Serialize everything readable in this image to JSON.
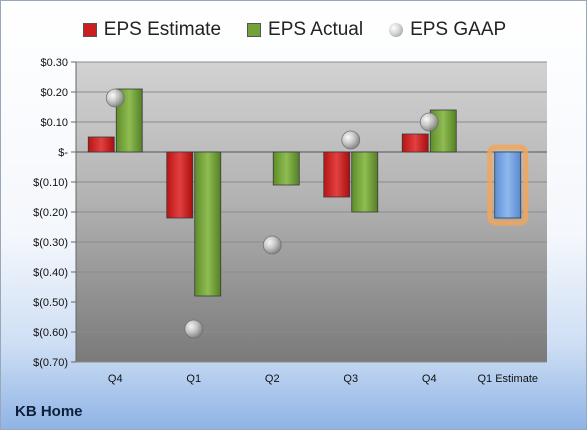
{
  "company": "KB Home",
  "legend": [
    {
      "label": "EPS Estimate",
      "color": "#cc1f1f",
      "kind": "square"
    },
    {
      "label": "EPS Actual",
      "color": "#73a13a",
      "kind": "square"
    },
    {
      "label": "EPS GAAP",
      "color": "#b5b5b5",
      "kind": "circle"
    }
  ],
  "colors": {
    "estimate": "#cc1f1f",
    "actual": "#73a13a",
    "forecast": "#6f9fe0",
    "forecast_glow": "#f2a55a",
    "gaap": "#b5b5b5"
  },
  "chart_data": {
    "type": "bar",
    "categories": [
      "Q4",
      "Q1",
      "Q2",
      "Q3",
      "Q4",
      "Q1 Estimate"
    ],
    "series": [
      {
        "name": "EPS Estimate",
        "values": [
          0.05,
          -0.22,
          null,
          -0.15,
          0.06,
          -0.22
        ]
      },
      {
        "name": "EPS Actual",
        "values": [
          0.21,
          -0.48,
          -0.11,
          -0.2,
          0.14,
          null
        ]
      },
      {
        "name": "EPS GAAP",
        "values": [
          0.18,
          -0.59,
          -0.31,
          0.04,
          0.1,
          null
        ]
      }
    ],
    "ylim": [
      -0.7,
      0.3
    ],
    "yticks": [
      0.3,
      0.2,
      0.1,
      0.0,
      -0.1,
      -0.2,
      -0.3,
      -0.4,
      -0.5,
      -0.6,
      -0.7
    ],
    "ytick_labels": [
      "$0.30",
      "$0.20",
      "$0.10",
      "$-",
      "$(0.10)",
      "$(0.20)",
      "$(0.30)",
      "$(0.40)",
      "$(0.50)",
      "$(0.60)",
      "$(0.70)"
    ],
    "highlighted_category": "Q1 Estimate",
    "grid": true
  }
}
